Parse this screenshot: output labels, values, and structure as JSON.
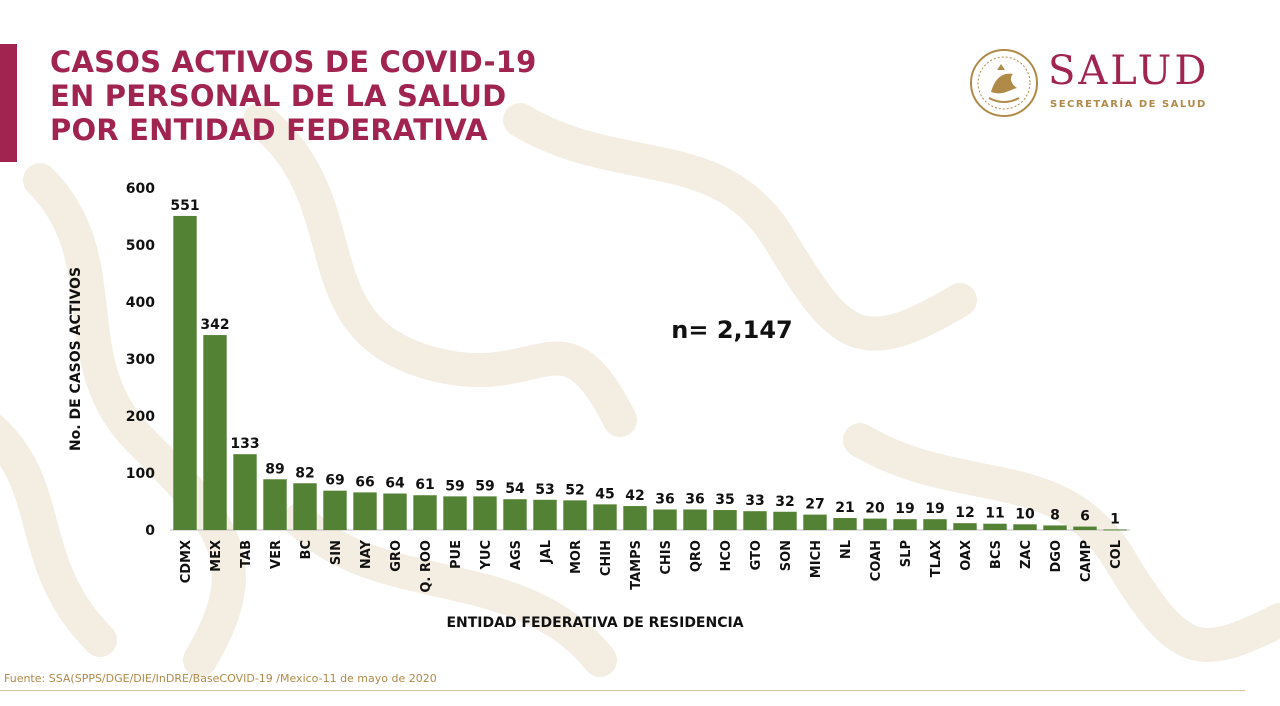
{
  "slide": {
    "title_lines": [
      "CASOS ACTIVOS DE COVID-19",
      "EN PERSONAL DE LA SALUD",
      "POR ENTIDAD FEDERATIVA"
    ],
    "footnote": "Fuente: SSA(SPPS/DGE/DIE/InDRE/BaseCOVID-19 /Mexico-11 de mayo de 2020"
  },
  "logo": {
    "name": "SALUD",
    "subtitle": "SECRETARÍA DE SALUD",
    "icon": "mexican-coat-of-arms-seal-icon"
  },
  "colors": {
    "brand": "#a12350",
    "gold": "#b08a48",
    "bar": "#548235",
    "text": "#111111"
  },
  "chart_data": {
    "type": "bar",
    "title": "CASOS ACTIVOS DE COVID-19 EN PERSONAL DE LA SALUD POR ENTIDAD FEDERATIVA",
    "xlabel": "ENTIDAD FEDERATIVA DE RESIDENCIA",
    "ylabel": "No. DE CASOS ACTIVOS",
    "ylim": [
      0,
      600
    ],
    "yticks": [
      0,
      100,
      200,
      300,
      400,
      500,
      600
    ],
    "grid": false,
    "legend": "none",
    "data_labels": true,
    "annotation": "n= 2,147",
    "categories": [
      "CDMX",
      "MEX",
      "TAB",
      "VER",
      "BC",
      "SIN",
      "NAY",
      "GRO",
      "Q. ROO",
      "PUE",
      "YUC",
      "AGS",
      "JAL",
      "MOR",
      "CHIH",
      "TAMPS",
      "CHIS",
      "QRO",
      "HCO",
      "GTO",
      "SON",
      "MICH",
      "NL",
      "COAH",
      "SLP",
      "TLAX",
      "OAX",
      "BCS",
      "ZAC",
      "DGO",
      "CAMP",
      "COL"
    ],
    "values": [
      551,
      342,
      133,
      89,
      82,
      69,
      66,
      64,
      61,
      59,
      59,
      54,
      53,
      52,
      45,
      42,
      36,
      36,
      35,
      33,
      32,
      27,
      21,
      20,
      19,
      19,
      12,
      11,
      10,
      8,
      6,
      1
    ]
  }
}
